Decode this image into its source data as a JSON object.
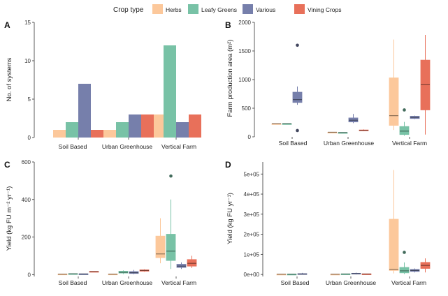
{
  "legend": {
    "title": "Crop type",
    "items": [
      {
        "label": "Herbs",
        "color": "#fcc89b"
      },
      {
        "label": "Leafy Greens",
        "color": "#78c2a6"
      },
      {
        "label": "Various",
        "color": "#767fab"
      },
      {
        "label": "Vining Crops",
        "color": "#e8705a"
      }
    ]
  },
  "chart_data": [
    {
      "panel": "A",
      "type": "bar",
      "ylabel": "No. of systems",
      "ylim": [
        0,
        15
      ],
      "yticks": [
        "0",
        "5",
        "10",
        "15"
      ],
      "categories": [
        "Soil Based",
        "Urban Greenhouse",
        "Vertical Farm"
      ],
      "series": [
        {
          "name": "Herbs",
          "values": [
            1,
            1,
            3
          ]
        },
        {
          "name": "Leafy Greens",
          "values": [
            2,
            2,
            12
          ]
        },
        {
          "name": "Various",
          "values": [
            7,
            3,
            2
          ]
        },
        {
          "name": "Vining Crops",
          "values": [
            1,
            3,
            3
          ]
        }
      ]
    },
    {
      "panel": "B",
      "type": "box",
      "ylabel": "Farm production area (m²)",
      "ylim": [
        0,
        2000
      ],
      "yticks": [
        "0",
        "500",
        "1000",
        "1500",
        "2000"
      ],
      "categories": [
        "Soil Based",
        "Urban Greenhouse",
        "Vertical Farm"
      ],
      "series": [
        {
          "name": "Herbs",
          "boxes": [
            {
              "min": 230,
              "q1": 230,
              "median": 230,
              "q3": 230,
              "max": 230,
              "outliers": []
            },
            {
              "min": 80,
              "q1": 80,
              "median": 80,
              "q3": 80,
              "max": 80,
              "outliers": []
            },
            {
              "min": 120,
              "q1": 200,
              "median": 370,
              "q3": 1030,
              "max": 1700,
              "outliers": []
            }
          ]
        },
        {
          "name": "Leafy Greens",
          "boxes": [
            {
              "min": 230,
              "q1": 230,
              "median": 230,
              "q3": 230,
              "max": 230,
              "outliers": []
            },
            {
              "min": 75,
              "q1": 75,
              "median": 75,
              "q3": 75,
              "max": 75,
              "outliers": []
            },
            {
              "min": 20,
              "q1": 40,
              "median": 100,
              "q3": 180,
              "max": 260,
              "outliers": [
                470
              ]
            }
          ]
        },
        {
          "name": "Various",
          "boxes": [
            {
              "min": 560,
              "q1": 600,
              "median": 650,
              "q3": 780,
              "max": 880,
              "outliers": [
                1600,
                110
              ]
            },
            {
              "min": 240,
              "q1": 260,
              "median": 290,
              "q3": 330,
              "max": 400,
              "outliers": []
            },
            {
              "min": 310,
              "q1": 320,
              "median": 340,
              "q3": 360,
              "max": 370,
              "outliers": []
            }
          ]
        },
        {
          "name": "Vining Crops",
          "boxes": null
        },
        {
          "name": "Vining Crops",
          "boxes": [
            null,
            {
              "min": 100,
              "q1": 110,
              "median": 115,
              "q3": 120,
              "max": 130,
              "outliers": []
            },
            {
              "min": 40,
              "q1": 470,
              "median": 910,
              "q3": 1340,
              "max": 1780,
              "outliers": []
            }
          ]
        }
      ]
    },
    {
      "panel": "C",
      "type": "box",
      "ylabel": "Yield (kg FU m⁻² yr⁻¹)",
      "ylim": [
        -10,
        600
      ],
      "yticks": [
        "0",
        "200",
        "400",
        "600"
      ],
      "categories": [
        "Soil Based",
        "Urban Greenhouse",
        "Vertical Farm"
      ],
      "series": [
        {
          "name": "Herbs",
          "boxes": [
            {
              "min": 1,
              "q1": 1,
              "median": 2,
              "q3": 3,
              "max": 4,
              "outliers": []
            },
            {
              "min": 0,
              "q1": 1,
              "median": 2,
              "q3": 3,
              "max": 4,
              "outliers": []
            },
            {
              "min": 60,
              "q1": 90,
              "median": 110,
              "q3": 205,
              "max": 300,
              "outliers": []
            }
          ]
        },
        {
          "name": "Leafy Greens",
          "boxes": [
            {
              "min": 2,
              "q1": 3,
              "median": 4,
              "q3": 5,
              "max": 6,
              "outliers": []
            },
            {
              "min": 3,
              "q1": 8,
              "median": 12,
              "q3": 18,
              "max": 22,
              "outliers": []
            },
            {
              "min": 30,
              "q1": 75,
              "median": 125,
              "q3": 215,
              "max": 400,
              "outliers": [
                525
              ]
            }
          ]
        },
        {
          "name": "Various",
          "boxes": [
            {
              "min": 2,
              "q1": 3,
              "median": 3,
              "q3": 4,
              "max": 5,
              "outliers": []
            },
            {
              "min": 2,
              "q1": 6,
              "median": 10,
              "q3": 16,
              "max": 25,
              "outliers": []
            },
            {
              "min": 30,
              "q1": 38,
              "median": 45,
              "q3": 55,
              "max": 65,
              "outliers": []
            }
          ]
        },
        {
          "name": "Vining Crops",
          "boxes": [
            {
              "min": 14,
              "q1": 15,
              "median": 16,
              "q3": 17,
              "max": 18,
              "outliers": []
            },
            {
              "min": 15,
              "q1": 18,
              "median": 22,
              "q3": 25,
              "max": 28,
              "outliers": []
            },
            {
              "min": 35,
              "q1": 45,
              "median": 60,
              "q3": 80,
              "max": 100,
              "outliers": []
            }
          ]
        }
      ]
    },
    {
      "panel": "D",
      "type": "box",
      "ylabel": "Yield (kg FU yr⁻¹)",
      "ylim": [
        -10000,
        560000
      ],
      "yticks": [
        "0e+00",
        "1e+05",
        "2e+05",
        "3e+05",
        "4e+05",
        "5e+05"
      ],
      "categories": [
        "Soil Based",
        "Urban Greenhouse",
        "Vertical Farm"
      ],
      "series": [
        {
          "name": "Herbs",
          "boxes": [
            {
              "min": 0,
              "q1": 500,
              "median": 1000,
              "q3": 1500,
              "max": 2000,
              "outliers": []
            },
            {
              "min": 0,
              "q1": 500,
              "median": 1000,
              "q3": 1500,
              "max": 2000,
              "outliers": []
            },
            {
              "min": 5000,
              "q1": 20000,
              "median": 25000,
              "q3": 275000,
              "max": 520000,
              "outliers": []
            }
          ]
        },
        {
          "name": "Leafy Greens",
          "boxes": [
            {
              "min": 0,
              "q1": 500,
              "median": 1000,
              "q3": 1500,
              "max": 2000,
              "outliers": []
            },
            {
              "min": 0,
              "q1": 800,
              "median": 2000,
              "q3": 3000,
              "max": 4000,
              "outliers": []
            },
            {
              "min": 2000,
              "q1": 8000,
              "median": 18000,
              "q3": 35000,
              "max": 60000,
              "outliers": [
                110000
              ]
            }
          ]
        },
        {
          "name": "Various",
          "boxes": [
            {
              "min": 0,
              "q1": 1000,
              "median": 2000,
              "q3": 4000,
              "max": 8000,
              "outliers": []
            },
            {
              "min": 0,
              "q1": 2000,
              "median": 4000,
              "q3": 6000,
              "max": 9000,
              "outliers": []
            },
            {
              "min": 10000,
              "q1": 15000,
              "median": 20000,
              "q3": 25000,
              "max": 30000,
              "outliers": []
            }
          ]
        },
        {
          "name": "Vining Crops",
          "boxes": [
            null,
            {
              "min": 0,
              "q1": 1000,
              "median": 2000,
              "q3": 3000,
              "max": 4000,
              "outliers": []
            },
            {
              "min": 10000,
              "q1": 30000,
              "median": 45000,
              "q3": 60000,
              "max": 80000,
              "outliers": []
            }
          ]
        }
      ]
    }
  ]
}
